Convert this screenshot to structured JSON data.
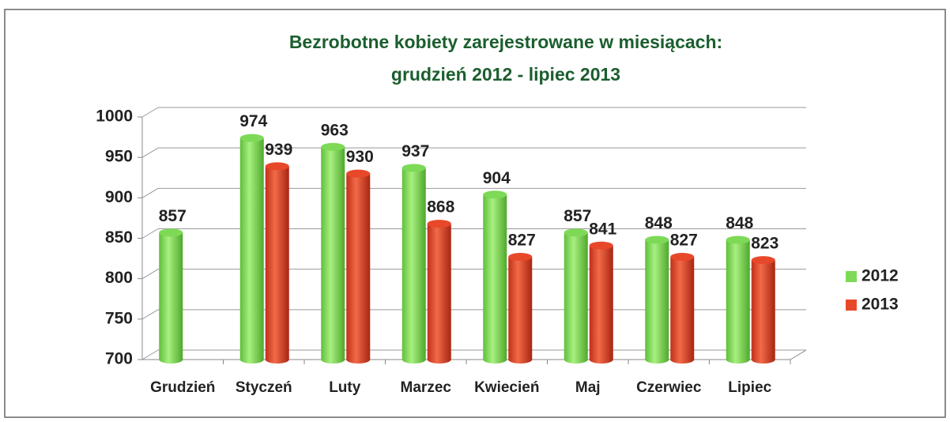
{
  "chart_data": {
    "type": "bar",
    "title": "Bezrobotne kobiety zarejestrowane w miesiącach:",
    "subtitle": "grudzień  2012 - lipiec 2013",
    "categories": [
      "Grudzień",
      "Styczeń",
      "Luty",
      "Marzec",
      "Kwiecień",
      "Maj",
      "Czerwiec",
      "Lipiec"
    ],
    "series": [
      {
        "name": "2012",
        "color": "#7ed957",
        "values": [
          857,
          974,
          963,
          937,
          904,
          857,
          848,
          848
        ]
      },
      {
        "name": "2013",
        "color": "#e8482a",
        "values": [
          null,
          939,
          930,
          868,
          827,
          841,
          827,
          823
        ]
      }
    ],
    "ylim": [
      700,
      1000
    ],
    "yticks": [
      700,
      750,
      800,
      850,
      900,
      950,
      1000
    ],
    "grid": true,
    "legend": "right"
  }
}
